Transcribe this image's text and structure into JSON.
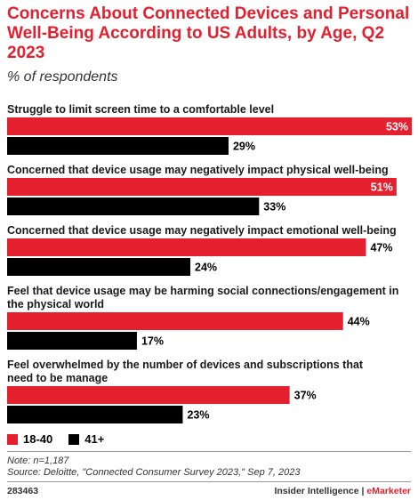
{
  "chart_data": {
    "type": "bar",
    "orientation": "horizontal",
    "title": "Concerns About Connected Devices and Personal Well-Being According to US Adults, by Age, Q2 2023",
    "subtitle": "% of respondents",
    "categories": [
      "Struggle to limit screen time to a comfortable level",
      "Concerned that device usage may negatively impact physical well-being",
      "Concerned that device usage may negatively impact emotional well-being",
      "Feel that device usage may be harming social connections/engagement in the physical world",
      "Feel overwhelmed by the number of devices and subscriptions that need to be manage"
    ],
    "series": [
      {
        "name": "18-40",
        "values": [
          53,
          51,
          47,
          44,
          37
        ],
        "labels": [
          "53%",
          "51%",
          "47%",
          "44%",
          "37%"
        ],
        "color": "#e4202e"
      },
      {
        "name": "41+",
        "values": [
          29,
          33,
          24,
          17,
          23
        ],
        "labels": [
          "29%",
          "33%",
          "24%",
          "17%",
          "23%"
        ],
        "color": "#000000"
      }
    ],
    "xlim": [
      0,
      53
    ],
    "grid": false,
    "legend": "bottom-left"
  },
  "note": "Note: n=1,187",
  "source": "Source: Deloitte, \"Connected Consumer Survey 2023,\" Sep 7, 2023",
  "footer": {
    "id": "283463",
    "brand_main": "Insider Intelligence",
    "brand_sep": " | ",
    "brand_accent": "eMarketer"
  }
}
